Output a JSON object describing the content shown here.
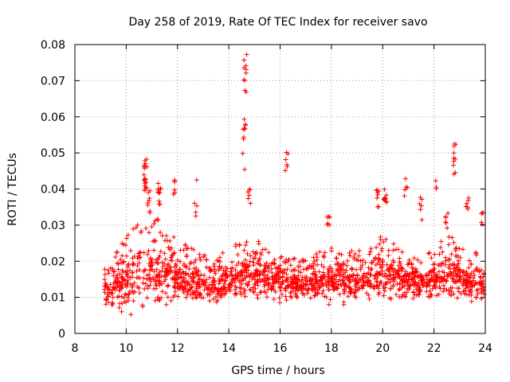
{
  "chart_data": {
    "type": "scatter",
    "title": "Day 258 of 2019, Rate Of TEC Index for receiver savo",
    "xlabel": "GPS time / hours",
    "ylabel": "ROTI / TECUs",
    "xlim": [
      8,
      24
    ],
    "ylim": [
      0,
      0.08
    ],
    "xticks": [
      8,
      10,
      12,
      14,
      16,
      18,
      20,
      22,
      24
    ],
    "yticks": [
      0,
      0.01,
      0.02,
      0.03,
      0.04,
      0.05,
      0.06,
      0.07,
      0.08
    ],
    "xtick_labels": [
      "8",
      "10",
      "12",
      "14",
      "16",
      "18",
      "20",
      "22",
      "24"
    ],
    "ytick_labels": [
      "0",
      "0.01",
      "0.02",
      "0.03",
      "0.04",
      "0.05",
      "0.06",
      "0.07",
      "0.08"
    ],
    "grid": true,
    "marker": "+",
    "series": [
      {
        "name": "ROTI",
        "color": "#ff0000",
        "x_range": [
          9.15,
          24.0
        ],
        "typical_range": [
          0.006,
          0.03
        ],
        "bulk_points": 1800,
        "band_profile": [
          [
            9.2,
            0.011,
            0.016
          ],
          [
            9.6,
            0.012,
            0.022
          ],
          [
            10.0,
            0.013,
            0.025
          ],
          [
            10.5,
            0.016,
            0.03
          ],
          [
            10.9,
            0.017,
            0.03
          ],
          [
            11.3,
            0.016,
            0.03
          ],
          [
            11.7,
            0.015,
            0.026
          ],
          [
            12.2,
            0.015,
            0.024
          ],
          [
            12.8,
            0.014,
            0.022
          ],
          [
            13.4,
            0.013,
            0.02
          ],
          [
            14.0,
            0.014,
            0.022
          ],
          [
            14.6,
            0.016,
            0.026
          ],
          [
            15.2,
            0.015,
            0.024
          ],
          [
            15.8,
            0.014,
            0.022
          ],
          [
            16.4,
            0.013,
            0.02
          ],
          [
            17.0,
            0.013,
            0.02
          ],
          [
            17.6,
            0.014,
            0.022
          ],
          [
            18.2,
            0.015,
            0.024
          ],
          [
            18.8,
            0.014,
            0.022
          ],
          [
            19.4,
            0.014,
            0.022
          ],
          [
            20.0,
            0.016,
            0.026
          ],
          [
            20.5,
            0.015,
            0.024
          ],
          [
            21.0,
            0.014,
            0.022
          ],
          [
            21.6,
            0.014,
            0.02
          ],
          [
            22.2,
            0.015,
            0.024
          ],
          [
            22.7,
            0.016,
            0.026
          ],
          [
            23.2,
            0.014,
            0.022
          ],
          [
            23.6,
            0.014,
            0.022
          ],
          [
            24.0,
            0.013,
            0.02
          ]
        ],
        "bursts": [
          [
            10.75,
            0.038,
            0.049,
            20
          ],
          [
            10.9,
            0.033,
            0.04,
            8
          ],
          [
            11.3,
            0.034,
            0.043,
            12
          ],
          [
            11.9,
            0.038,
            0.046,
            6
          ],
          [
            12.7,
            0.03,
            0.043,
            5
          ],
          [
            14.65,
            0.066,
            0.078,
            10
          ],
          [
            14.6,
            0.045,
            0.06,
            10
          ],
          [
            14.8,
            0.034,
            0.041,
            6
          ],
          [
            16.25,
            0.045,
            0.051,
            6
          ],
          [
            17.9,
            0.03,
            0.033,
            6
          ],
          [
            19.8,
            0.034,
            0.04,
            8
          ],
          [
            20.1,
            0.036,
            0.04,
            10
          ],
          [
            20.9,
            0.038,
            0.044,
            5
          ],
          [
            21.5,
            0.03,
            0.038,
            6
          ],
          [
            22.1,
            0.04,
            0.043,
            3
          ],
          [
            22.5,
            0.028,
            0.035,
            6
          ],
          [
            22.8,
            0.044,
            0.053,
            10
          ],
          [
            23.3,
            0.034,
            0.038,
            6
          ],
          [
            23.9,
            0.03,
            0.035,
            5
          ]
        ]
      }
    ]
  }
}
